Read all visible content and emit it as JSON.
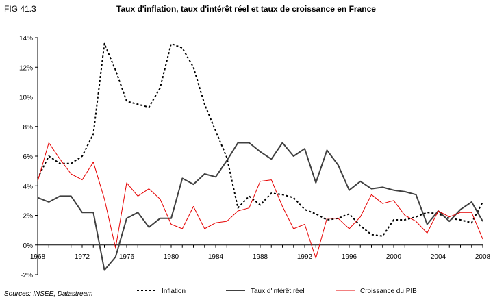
{
  "figure_label": "FIG 41.3",
  "source": "Sources: INSEE, Datastream",
  "chart_data": {
    "type": "line",
    "title": "Taux d'inflation, taux d'intérêt réel et taux de croissance en France",
    "xlabel": "",
    "ylabel": "",
    "xlim": [
      1968,
      2008
    ],
    "ylim": [
      -2,
      14
    ],
    "x_ticks": [
      1968,
      1972,
      1976,
      1980,
      1984,
      1988,
      1992,
      1996,
      2000,
      2004,
      2008
    ],
    "y_ticks": [
      -2,
      0,
      2,
      4,
      6,
      8,
      10,
      12,
      14
    ],
    "y_tick_labels": [
      "-2%",
      "0%",
      "2%",
      "4%",
      "6%",
      "8%",
      "10%",
      "12%",
      "14%"
    ],
    "grid": false,
    "legend_position": "bottom",
    "series": [
      {
        "name": "Inflation",
        "color": "#000000",
        "style": "dotted",
        "x": [
          1968,
          1969,
          1970,
          1971,
          1972,
          1973,
          1974,
          1975,
          1976,
          1977,
          1978,
          1979,
          1980,
          1981,
          1982,
          1983,
          1984,
          1985,
          1986,
          1987,
          1988,
          1989,
          1990,
          1991,
          1992,
          1993,
          1994,
          1995,
          1996,
          1997,
          1998,
          1999,
          2000,
          2001,
          2002,
          2003,
          2004,
          2005,
          2006,
          2007,
          2008
        ],
        "y": [
          4.5,
          6.0,
          5.5,
          5.5,
          6.0,
          7.5,
          13.6,
          11.8,
          9.7,
          9.5,
          9.3,
          10.6,
          13.6,
          13.3,
          12.0,
          9.5,
          7.7,
          5.9,
          2.5,
          3.3,
          2.7,
          3.5,
          3.4,
          3.2,
          2.4,
          2.1,
          1.7,
          1.8,
          2.1,
          1.3,
          0.7,
          0.6,
          1.7,
          1.7,
          1.9,
          2.2,
          2.1,
          1.8,
          1.7,
          1.5,
          2.9
        ]
      },
      {
        "name": "Taux d'intérêt réel",
        "color": "#404040",
        "style": "solid",
        "x": [
          1968,
          1969,
          1970,
          1971,
          1972,
          1973,
          1974,
          1975,
          1976,
          1977,
          1978,
          1979,
          1980,
          1981,
          1982,
          1983,
          1984,
          1985,
          1986,
          1987,
          1988,
          1989,
          1990,
          1991,
          1992,
          1993,
          1994,
          1995,
          1996,
          1997,
          1998,
          1999,
          2000,
          2001,
          2002,
          2003,
          2004,
          2005,
          2006,
          2007,
          2008
        ],
        "y": [
          3.2,
          2.9,
          3.3,
          3.3,
          2.2,
          2.2,
          -1.7,
          -0.8,
          1.8,
          2.2,
          1.2,
          1.8,
          1.8,
          4.5,
          4.1,
          4.8,
          4.6,
          5.7,
          6.9,
          6.9,
          6.3,
          5.8,
          6.9,
          6.0,
          6.5,
          4.2,
          6.4,
          5.4,
          3.7,
          4.3,
          3.8,
          3.9,
          3.7,
          3.6,
          3.4,
          1.4,
          2.3,
          1.6,
          2.4,
          2.9,
          1.6
        ]
      },
      {
        "name": "Croissance du PIB",
        "color": "#e60000",
        "style": "solid",
        "x": [
          1968,
          1969,
          1970,
          1971,
          1972,
          1973,
          1974,
          1975,
          1976,
          1977,
          1978,
          1979,
          1980,
          1981,
          1982,
          1983,
          1984,
          1985,
          1986,
          1987,
          1988,
          1989,
          1990,
          1991,
          1992,
          1993,
          1994,
          1995,
          1996,
          1997,
          1998,
          1999,
          2000,
          2001,
          2002,
          2003,
          2004,
          2005,
          2006,
          2007,
          2008
        ],
        "y": [
          4.3,
          6.9,
          5.8,
          4.8,
          4.4,
          5.6,
          3.1,
          -0.2,
          4.2,
          3.3,
          3.8,
          3.1,
          1.4,
          1.1,
          2.6,
          1.1,
          1.5,
          1.6,
          2.3,
          2.5,
          4.3,
          4.4,
          2.6,
          1.1,
          1.4,
          -0.9,
          1.8,
          1.8,
          1.1,
          1.9,
          3.4,
          2.8,
          3.0,
          2.0,
          1.6,
          0.8,
          2.3,
          1.9,
          2.2,
          2.2,
          0.4
        ]
      }
    ]
  }
}
